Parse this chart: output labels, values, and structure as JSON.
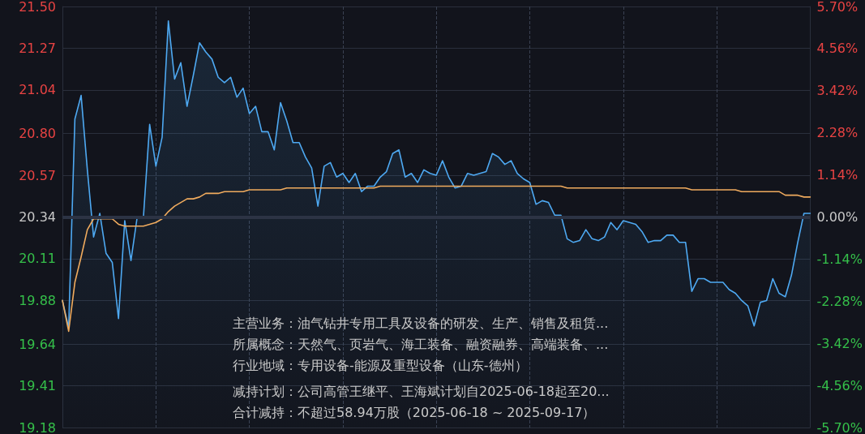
{
  "chart_data": {
    "type": "line",
    "categories": [
      null,
      null,
      null,
      null,
      null,
      null,
      null,
      null,
      null,
      null,
      null,
      null,
      null,
      null,
      null,
      null,
      null,
      null,
      null,
      null,
      null,
      null,
      null,
      null,
      null,
      null,
      null,
      null,
      null,
      null,
      null,
      null,
      null,
      null,
      null,
      null,
      null,
      null,
      null,
      null,
      null,
      null,
      null,
      null,
      null,
      null,
      null,
      null,
      null,
      null,
      null,
      null,
      null,
      null,
      null,
      null,
      null,
      null,
      null,
      null,
      null,
      null,
      null,
      null,
      null,
      null,
      null,
      null,
      null,
      null,
      null,
      null,
      null,
      null,
      null,
      null,
      null,
      null,
      null,
      null,
      null,
      null,
      null,
      null,
      null,
      null,
      null,
      null,
      null,
      null,
      null,
      null,
      null,
      null,
      null,
      null,
      null,
      null,
      null,
      null,
      null,
      null,
      null,
      null,
      null,
      null,
      null,
      null,
      null,
      null,
      null,
      null,
      null,
      null,
      null,
      null,
      null,
      null,
      null,
      null,
      null
    ],
    "series": [
      {
        "type": "area",
        "color": "#4ea9f2",
        "values": [
          19.88,
          19.73,
          20.88,
          21.01,
          20.6,
          20.23,
          20.36,
          20.14,
          20.09,
          19.78,
          20.32,
          20.1,
          20.34,
          20.34,
          20.85,
          20.62,
          20.78,
          21.42,
          21.1,
          21.19,
          20.95,
          21.12,
          21.3,
          21.25,
          21.21,
          21.11,
          21.08,
          21.11,
          21.0,
          21.05,
          20.91,
          20.95,
          20.81,
          20.81,
          20.71,
          20.97,
          20.87,
          20.75,
          20.75,
          20.67,
          20.61,
          20.4,
          20.62,
          20.64,
          20.56,
          20.58,
          20.53,
          20.58,
          20.48,
          20.51,
          20.51,
          20.56,
          20.59,
          20.69,
          20.71,
          20.56,
          20.58,
          20.53,
          20.6,
          20.58,
          20.57,
          20.65,
          20.56,
          20.5,
          20.51,
          20.58,
          20.57,
          20.58,
          20.59,
          20.69,
          20.67,
          20.63,
          20.65,
          20.58,
          20.55,
          20.53,
          20.41,
          20.43,
          20.42,
          20.35,
          20.35,
          20.22,
          20.2,
          20.21,
          20.27,
          20.22,
          20.21,
          20.23,
          20.31,
          20.27,
          20.32,
          20.31,
          20.3,
          20.26,
          20.2,
          20.21,
          20.21,
          20.24,
          20.24,
          20.2,
          20.2,
          19.93,
          20.0,
          20.0,
          19.98,
          19.98,
          19.98,
          19.94,
          19.92,
          19.88,
          19.85,
          19.74,
          19.87,
          19.88,
          20.0,
          19.92,
          19.9,
          20.02,
          20.2,
          20.36,
          20.36
        ]
      },
      {
        "color": "#f0ab5e",
        "values": [
          19.88,
          19.71,
          19.98,
          20.12,
          20.27,
          20.33,
          20.33,
          20.33,
          20.33,
          20.3,
          20.29,
          20.29,
          20.29,
          20.29,
          20.3,
          20.31,
          20.33,
          20.37,
          20.4,
          20.42,
          20.44,
          20.44,
          20.45,
          20.47,
          20.47,
          20.47,
          20.48,
          20.48,
          20.48,
          20.48,
          20.49,
          20.49,
          20.49,
          20.49,
          20.49,
          20.49,
          20.5,
          20.5,
          20.5,
          20.5,
          20.5,
          20.5,
          20.5,
          20.5,
          20.5,
          20.5,
          20.5,
          20.5,
          20.5,
          20.5,
          20.5,
          20.51,
          20.51,
          20.51,
          20.51,
          20.51,
          20.51,
          20.51,
          20.51,
          20.51,
          20.51,
          20.51,
          20.51,
          20.51,
          20.51,
          20.51,
          20.51,
          20.51,
          20.51,
          20.51,
          20.51,
          20.51,
          20.51,
          20.51,
          20.51,
          20.51,
          20.51,
          20.51,
          20.51,
          20.51,
          20.51,
          20.5,
          20.5,
          20.5,
          20.5,
          20.5,
          20.5,
          20.5,
          20.5,
          20.5,
          20.5,
          20.5,
          20.5,
          20.5,
          20.5,
          20.5,
          20.5,
          20.5,
          20.5,
          20.5,
          20.5,
          20.49,
          20.49,
          20.49,
          20.49,
          20.49,
          20.49,
          20.49,
          20.49,
          20.48,
          20.48,
          20.48,
          20.48,
          20.48,
          20.48,
          20.48,
          20.46,
          20.46,
          20.46,
          20.45,
          20.45
        ]
      }
    ],
    "ylim": [
      19.18,
      21.5
    ],
    "yticks": [
      {
        "value": 19.18,
        "label": "19.18"
      },
      {
        "value": 19.41,
        "label": "19.41"
      },
      {
        "value": 19.64,
        "label": "19.64"
      },
      {
        "value": 19.88,
        "label": "19.88"
      },
      {
        "value": 20.11,
        "label": "20.11"
      },
      {
        "value": 20.34,
        "label": "20.34"
      },
      {
        "value": 20.57,
        "label": "20.57"
      },
      {
        "value": 20.8,
        "label": "20.80"
      },
      {
        "value": 21.04,
        "label": "21.04"
      },
      {
        "value": 21.27,
        "label": "21.27"
      },
      {
        "value": 21.5,
        "label": "21.50"
      }
    ],
    "y2lim": [
      -5.7,
      5.7
    ],
    "y2ticks": [
      {
        "value": -5.7,
        "label": "-5.70%"
      },
      {
        "value": -4.56,
        "label": "-4.56%"
      },
      {
        "value": -3.42,
        "label": "-3.42%"
      },
      {
        "value": -2.28,
        "label": "-2.28%"
      },
      {
        "value": -1.14,
        "label": "-1.14%"
      },
      {
        "value": 0,
        "label": "0.00%"
      },
      {
        "value": 1.14,
        "label": "1.14%"
      },
      {
        "value": 2.28,
        "label": "2.28%"
      },
      {
        "value": 3.42,
        "label": "3.42%"
      },
      {
        "value": 4.56,
        "label": "4.56%"
      },
      {
        "value": 5.7,
        "label": "5.70%"
      }
    ],
    "ref_lines": [
      {
        "axis": "y2",
        "value": 0,
        "color": "#2c3344"
      }
    ],
    "grid": true,
    "line_style": "solid",
    "annotations": [
      "主营业务：油气钻井专用工具及设备的研发、生产、销售及租赁...",
      "所属概念：天然气、页岩气、海工装备、融资融券、高端装备、...",
      "行业地域：专用设备-能源及重型设备（山东-德州）",
      "减持计划：公司高管王继平、王海斌计划自2025-06-18起至20...",
      "合计减持：不超过58.94万股（2025-06-18 ~ 2025-09-17）"
    ]
  }
}
